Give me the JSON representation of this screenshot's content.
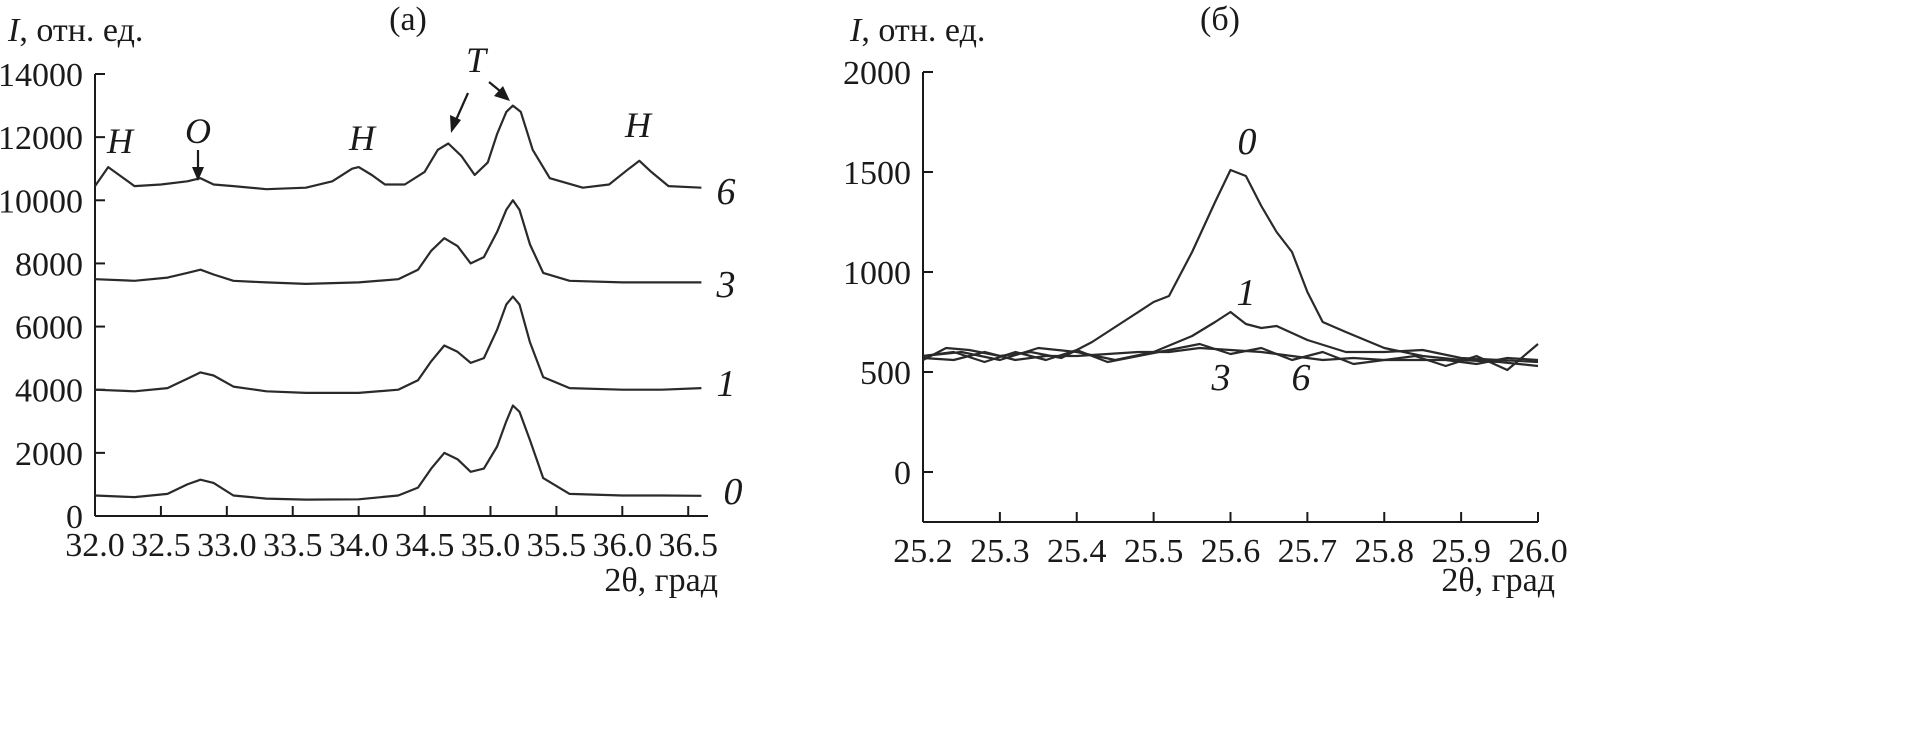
{
  "chart_data": [
    {
      "type": "line",
      "panel_label": "(a)",
      "ylabel_symbol": "I",
      "ylabel_unit": ", отн. ед.",
      "xlabel": "2θ, град",
      "xlim": [
        32.0,
        36.65
      ],
      "ylim": [
        0,
        14000
      ],
      "xticks": [
        32.0,
        32.5,
        33.0,
        33.5,
        34.0,
        34.5,
        35.0,
        35.5,
        36.0,
        36.5
      ],
      "xtick_labels": [
        "32.0",
        "32.5",
        "33.0",
        "33.5",
        "34.0",
        "34.5",
        "35.0",
        "35.5",
        "36.0",
        "36.5"
      ],
      "yticks": [
        0,
        2000,
        4000,
        6000,
        8000,
        10000,
        12000,
        14000
      ],
      "ytick_labels": [
        "0",
        "2000",
        "4000",
        "6000",
        "8000",
        "10000",
        "12000",
        "14000"
      ],
      "series": [
        {
          "name": "0",
          "x": [
            32.0,
            32.3,
            32.55,
            32.7,
            32.8,
            32.9,
            33.05,
            33.3,
            33.6,
            34.0,
            34.3,
            34.45,
            34.55,
            34.65,
            34.75,
            34.85,
            34.95,
            35.05,
            35.12,
            35.17,
            35.22,
            35.3,
            35.4,
            35.6,
            36.0,
            36.3,
            36.6
          ],
          "y": [
            650,
            600,
            700,
            1000,
            1150,
            1050,
            650,
            550,
            520,
            530,
            650,
            900,
            1500,
            2000,
            1800,
            1400,
            1500,
            2200,
            3000,
            3500,
            3300,
            2400,
            1200,
            700,
            650,
            650,
            640
          ]
        },
        {
          "name": "1",
          "x": [
            32.0,
            32.3,
            32.55,
            32.7,
            32.8,
            32.9,
            33.05,
            33.3,
            33.6,
            34.0,
            34.3,
            34.45,
            34.55,
            34.65,
            34.75,
            34.85,
            34.95,
            35.05,
            35.12,
            35.17,
            35.22,
            35.3,
            35.4,
            35.6,
            36.0,
            36.3,
            36.6
          ],
          "y": [
            4000,
            3950,
            4050,
            4350,
            4550,
            4450,
            4100,
            3950,
            3900,
            3900,
            4000,
            4300,
            4900,
            5400,
            5200,
            4850,
            5000,
            5900,
            6700,
            6950,
            6700,
            5500,
            4400,
            4050,
            4000,
            4000,
            4050
          ]
        },
        {
          "name": "3",
          "x": [
            32.0,
            32.3,
            32.55,
            32.7,
            32.8,
            32.9,
            33.05,
            33.3,
            33.6,
            34.0,
            34.3,
            34.45,
            34.55,
            34.65,
            34.75,
            34.85,
            34.95,
            35.05,
            35.12,
            35.17,
            35.22,
            35.3,
            35.4,
            35.6,
            36.0,
            36.3,
            36.6
          ],
          "y": [
            7500,
            7450,
            7550,
            7700,
            7800,
            7650,
            7450,
            7400,
            7350,
            7400,
            7500,
            7800,
            8400,
            8800,
            8550,
            8000,
            8200,
            9000,
            9700,
            10000,
            9700,
            8600,
            7700,
            7450,
            7400,
            7400,
            7400
          ]
        },
        {
          "name": "6",
          "x": [
            32.0,
            32.05,
            32.1,
            32.2,
            32.3,
            32.5,
            32.7,
            32.8,
            32.9,
            33.05,
            33.3,
            33.6,
            33.8,
            33.95,
            34.0,
            34.1,
            34.2,
            34.35,
            34.5,
            34.6,
            34.68,
            34.78,
            34.88,
            34.98,
            35.05,
            35.12,
            35.17,
            35.23,
            35.32,
            35.45,
            35.7,
            35.9,
            36.05,
            36.13,
            36.22,
            36.35,
            36.6
          ],
          "y": [
            10450,
            10750,
            11050,
            10750,
            10450,
            10500,
            10600,
            10700,
            10500,
            10450,
            10350,
            10400,
            10600,
            11000,
            11050,
            10800,
            10500,
            10500,
            10900,
            11600,
            11800,
            11400,
            10800,
            11200,
            12100,
            12800,
            13000,
            12800,
            11600,
            10700,
            10400,
            10500,
            11000,
            11250,
            10900,
            10450,
            10400
          ]
        }
      ],
      "curve_labels": [
        "0",
        "1",
        "3",
        "6"
      ],
      "annotations": [
        "H",
        "O",
        "H",
        "T",
        "H"
      ]
    },
    {
      "type": "line",
      "panel_label": "(б)",
      "ylabel_symbol": "I",
      "ylabel_unit": ", отн. ед.",
      "xlabel": "2θ, град",
      "xlim": [
        25.2,
        26.0
      ],
      "ylim": [
        -250,
        2000
      ],
      "xticks": [
        25.2,
        25.3,
        25.4,
        25.5,
        25.6,
        25.7,
        25.8,
        25.9,
        26.0
      ],
      "xtick_labels": [
        "25.2",
        "25.3",
        "25.4",
        "25.5",
        "25.6",
        "25.7",
        "25.8",
        "25.9",
        "26.0"
      ],
      "yticks": [
        0,
        500,
        1000,
        1500,
        2000
      ],
      "ytick_labels": [
        "0",
        "500",
        "1000",
        "1500",
        "2000"
      ],
      "series": [
        {
          "name": "0",
          "x": [
            25.2,
            25.23,
            25.26,
            25.3,
            25.34,
            25.38,
            25.42,
            25.46,
            25.5,
            25.52,
            25.55,
            25.58,
            25.6,
            25.62,
            25.64,
            25.66,
            25.68,
            25.7,
            25.72,
            25.75,
            25.8,
            25.85,
            25.9,
            25.95,
            26.0
          ],
          "y": [
            560,
            620,
            610,
            580,
            600,
            570,
            650,
            750,
            850,
            880,
            1100,
            1350,
            1510,
            1480,
            1330,
            1200,
            1100,
            900,
            750,
            700,
            620,
            580,
            560,
            550,
            530
          ]
        },
        {
          "name": "1",
          "x": [
            25.2,
            25.25,
            25.3,
            25.35,
            25.4,
            25.45,
            25.5,
            25.55,
            25.58,
            25.6,
            25.62,
            25.64,
            25.66,
            25.7,
            25.75,
            25.8,
            25.85,
            25.9,
            25.95,
            26.0
          ],
          "y": [
            580,
            600,
            560,
            620,
            600,
            560,
            600,
            680,
            750,
            800,
            740,
            720,
            730,
            660,
            600,
            600,
            610,
            570,
            560,
            550
          ]
        },
        {
          "name": "3",
          "x": [
            25.2,
            25.24,
            25.28,
            25.32,
            25.36,
            25.4,
            25.44,
            25.48,
            25.52,
            25.56,
            25.6,
            25.64,
            25.68,
            25.72,
            25.76,
            25.8,
            25.84,
            25.88,
            25.92,
            25.96,
            26.0
          ],
          "y": [
            570,
            560,
            600,
            560,
            580,
            580,
            590,
            600,
            600,
            620,
            610,
            600,
            580,
            560,
            570,
            560,
            560,
            560,
            540,
            570,
            560
          ]
        },
        {
          "name": "6",
          "x": [
            25.2,
            25.24,
            25.28,
            25.32,
            25.36,
            25.4,
            25.44,
            25.48,
            25.52,
            25.56,
            25.6,
            25.64,
            25.68,
            25.72,
            25.76,
            25.8,
            25.84,
            25.88,
            25.92,
            25.96,
            26.0
          ],
          "y": [
            580,
            600,
            550,
            600,
            560,
            610,
            550,
            580,
            610,
            640,
            590,
            620,
            560,
            600,
            540,
            560,
            580,
            530,
            580,
            510,
            640
          ]
        }
      ],
      "curve_labels": [
        "0",
        "1",
        "3",
        "6"
      ]
    }
  ]
}
